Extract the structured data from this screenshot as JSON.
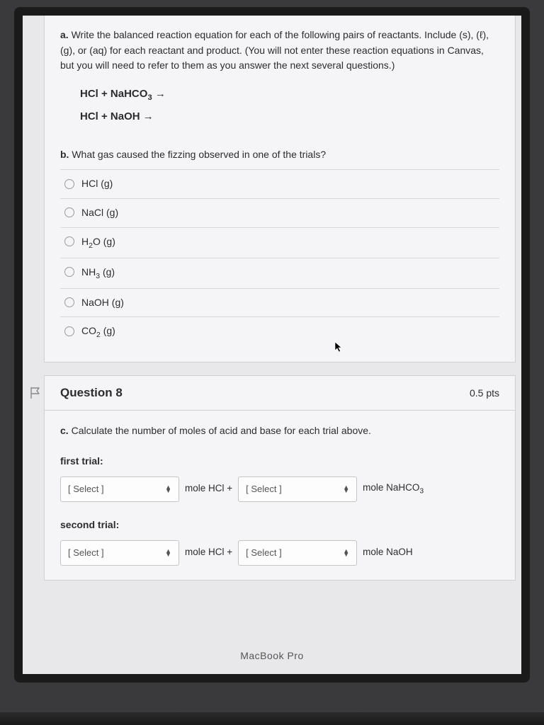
{
  "q7": {
    "partA": {
      "label": "a.",
      "text": " Write the balanced reaction equation for each of the following pairs of reactants. Include (s), (ℓ), (g), or (aq) for each reactant and product. (You will not enter these reaction equations in Canvas, but you will need to refer to them as you answer the next several questions.)",
      "eq1_lhs": "HCl + NaHCO",
      "eq1_sub": "3",
      "eq1_arrow": " →",
      "eq2_lhs": "HCl + NaOH",
      "eq2_arrow": " →"
    },
    "partB": {
      "label": "b.",
      "text": " What gas caused the fizzing observed in one of the trials?",
      "options": [
        {
          "html": "HCl (g)"
        },
        {
          "html": "NaCl (g)"
        },
        {
          "html": "H<sub>2</sub>O (g)"
        },
        {
          "html": "NH<sub>3</sub> (g)"
        },
        {
          "html": "NaOH (g)"
        },
        {
          "html": "CO<sub>2</sub> (g)"
        }
      ]
    }
  },
  "q8": {
    "title": "Question 8",
    "pts": "0.5 pts",
    "partC": {
      "label": "c.",
      "text": " Calculate the number of moles of acid and base for each trial above.",
      "trial1_label": "first trial:",
      "trial2_label": "second trial:",
      "select_placeholder": "[ Select ]",
      "mole_hcl": "mole HCl  +",
      "mole_nahco3": "mole NaHCO",
      "mole_nahco3_sub": "3",
      "mole_naoh": "mole NaOH"
    }
  },
  "device": "MacBook Pro"
}
